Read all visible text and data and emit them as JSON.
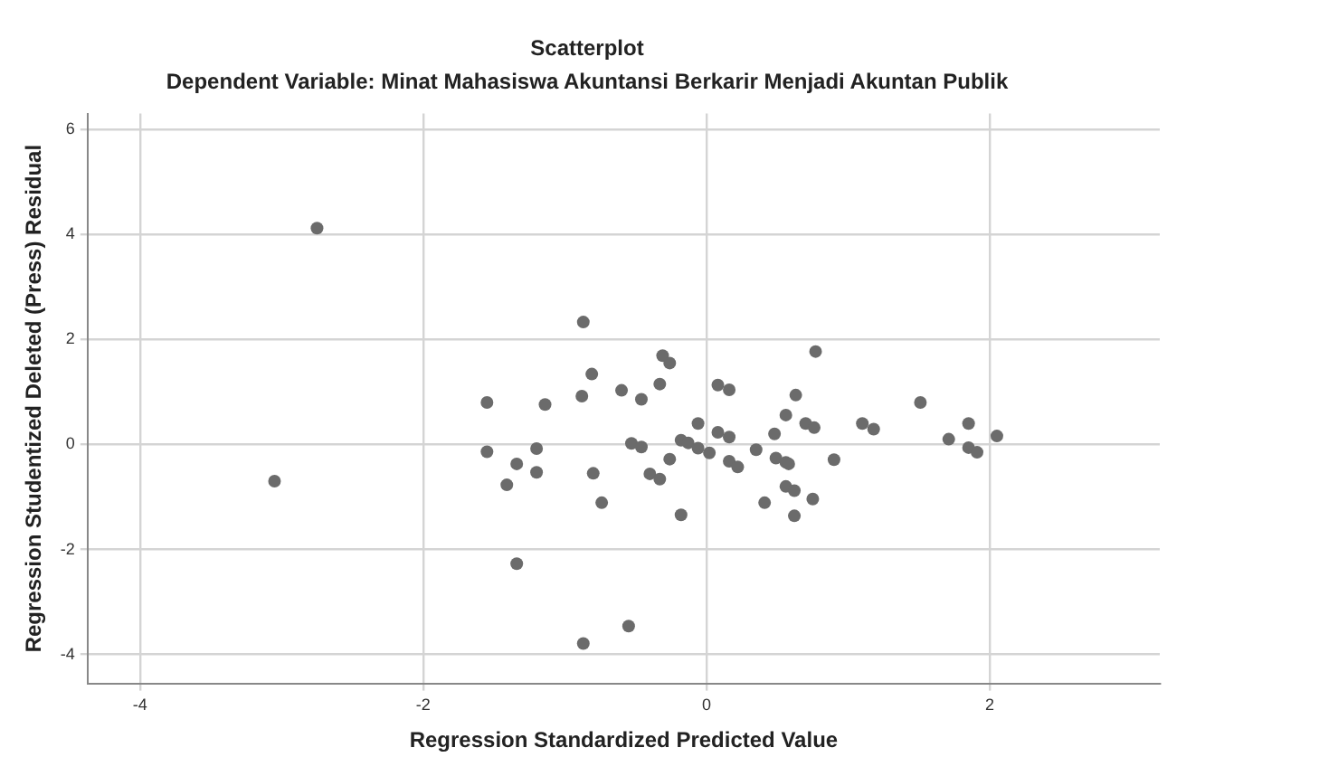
{
  "chart_data": {
    "type": "scatter",
    "title": "Scatterplot",
    "subtitle": "Dependent Variable: Minat Mahasiswa Akuntansi Berkarir Menjadi Akuntan Publik",
    "xlabel": "Regression Standardized Predicted Value",
    "ylabel": "Regression Studentized Deleted (Press) Residual",
    "xlim": [
      -4.37,
      3.2
    ],
    "ylim": [
      -4.55,
      6.3
    ],
    "xticks": [
      -4,
      -2,
      0,
      2
    ],
    "yticks": [
      -4,
      -2,
      0,
      2,
      4,
      6
    ],
    "grid": true,
    "marker": "circle",
    "series": [
      {
        "color": "#6b6b6b",
        "x": [
          -2.75,
          -3.05,
          -0.87,
          -1.55,
          -1.55,
          -1.34,
          -1.41,
          -1.2,
          -1.2,
          -1.14,
          -1.34,
          -0.87,
          -0.55,
          -0.88,
          -0.81,
          -0.8,
          -0.74,
          -0.6,
          -0.46,
          -0.53,
          -0.46,
          -0.4,
          -0.33,
          -0.33,
          -0.31,
          -0.26,
          -0.26,
          -0.18,
          -0.13,
          -0.18,
          -0.06,
          -0.06,
          0.02,
          0.08,
          0.16,
          0.08,
          0.16,
          0.16,
          0.22,
          0.35,
          0.41,
          0.48,
          0.49,
          0.56,
          0.56,
          0.58,
          0.56,
          0.62,
          0.62,
          0.63,
          0.7,
          0.76,
          0.75,
          0.77,
          0.9,
          1.1,
          1.18,
          1.51,
          1.71,
          1.85,
          1.85,
          1.91,
          2.05
        ],
        "values": [
          4.12,
          -0.7,
          2.33,
          0.8,
          -0.14,
          -0.37,
          -0.77,
          -0.08,
          -0.53,
          0.76,
          -2.27,
          -3.79,
          -3.46,
          0.92,
          1.34,
          -0.55,
          -1.11,
          1.03,
          0.86,
          0.02,
          -0.05,
          -0.56,
          -0.66,
          1.15,
          1.69,
          1.55,
          -0.28,
          0.08,
          0.03,
          -1.34,
          0.4,
          -0.07,
          -0.16,
          1.13,
          1.04,
          0.23,
          0.14,
          -0.32,
          -0.43,
          -0.1,
          -1.11,
          0.2,
          -0.26,
          0.56,
          -0.34,
          -0.37,
          -0.8,
          -0.88,
          -1.36,
          0.94,
          0.4,
          0.32,
          -1.04,
          1.77,
          -0.29,
          0.4,
          0.29,
          0.8,
          0.1,
          0.4,
          -0.06,
          -0.15,
          0.16
        ]
      }
    ]
  }
}
